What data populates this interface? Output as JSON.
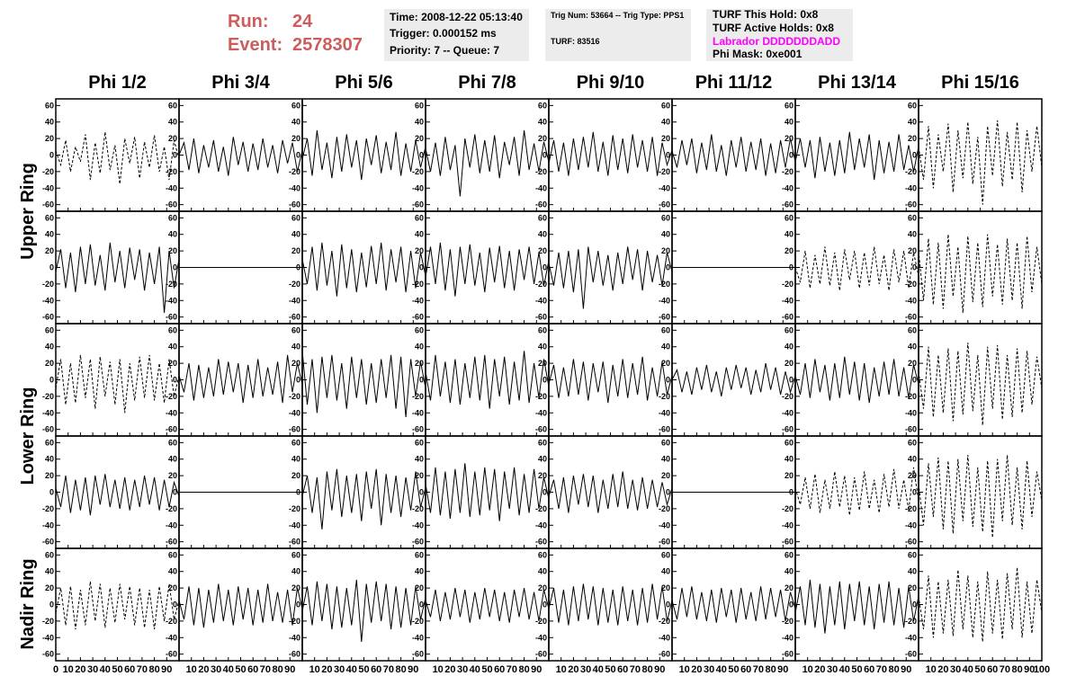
{
  "header": {
    "run_label": "Run:",
    "run": "24",
    "event_label": "Event:",
    "event": "2578307",
    "info_boxes": [
      {
        "lines": [
          "Time: 2008-12-22 05:13:40",
          "Trigger: 0.000152 ms",
          "Priority: 7 -- Queue: 7"
        ]
      },
      {
        "lines": [
          "Trig Num: 53664 -- Trig Type: PPS1",
          "TURF: 83516"
        ]
      },
      {
        "lines": [
          "TURF This Hold: 0x8",
          "TURF Active Holds: 0x8",
          "Labrador DDDDDDDADD",
          "Phi Mask: 0xe001"
        ]
      }
    ]
  },
  "columns": [
    "Phi 1/2",
    "Phi 3/4",
    "Phi 5/6",
    "Phi 7/8",
    "Phi 9/10",
    "Phi 11/12",
    "Phi 13/14",
    "Phi 15/16"
  ],
  "row_labels": [
    "Upper Ring",
    "Lower Ring",
    "Nadir Ring"
  ],
  "chart_data": {
    "type": "line",
    "xlim": [
      0,
      100
    ],
    "ylim": [
      -68,
      68
    ],
    "xticks": [
      0,
      10,
      20,
      30,
      40,
      50,
      60,
      70,
      80,
      90,
      100
    ],
    "yticks": [
      -60,
      -40,
      -20,
      0,
      20,
      40,
      60
    ],
    "x": [
      0,
      4,
      8,
      12,
      16,
      20,
      24,
      28,
      32,
      36,
      40,
      44,
      48,
      52,
      56,
      60,
      64,
      68,
      72,
      76,
      80,
      84,
      88,
      92,
      96,
      100
    ],
    "panels": [
      {
        "dashed": true,
        "values": [
          5,
          -12,
          18,
          -20,
          10,
          -8,
          25,
          -30,
          15,
          -22,
          28,
          -18,
          12,
          -35,
          20,
          -10,
          22,
          -28,
          16,
          -15,
          24,
          -20,
          10,
          -30,
          18,
          -5
        ]
      },
      {
        "dashed": false,
        "values": [
          0,
          15,
          -18,
          20,
          -22,
          12,
          -15,
          18,
          -20,
          10,
          -25,
          22,
          -12,
          16,
          -20,
          14,
          -18,
          20,
          -15,
          12,
          -22,
          18,
          -10,
          15,
          -20,
          5
        ]
      },
      {
        "dashed": false,
        "values": [
          -5,
          20,
          -25,
          30,
          -18,
          15,
          -28,
          22,
          -20,
          25,
          -15,
          18,
          -30,
          20,
          -12,
          24,
          -22,
          16,
          -18,
          28,
          -25,
          14,
          -20,
          18,
          -15,
          10
        ]
      },
      {
        "dashed": false,
        "values": [
          8,
          -20,
          15,
          -25,
          22,
          -18,
          12,
          -50,
          20,
          -15,
          25,
          -22,
          18,
          -20,
          24,
          -28,
          16,
          -12,
          22,
          -25,
          30,
          -18,
          14,
          -20,
          16,
          -8
        ]
      },
      {
        "dashed": false,
        "values": [
          -10,
          18,
          -20,
          15,
          -25,
          20,
          -18,
          22,
          -15,
          28,
          -20,
          16,
          -25,
          24,
          -18,
          20,
          -22,
          25,
          -15,
          18,
          -20,
          22,
          -25,
          15,
          -12,
          6
        ]
      },
      {
        "dashed": false,
        "values": [
          5,
          -15,
          18,
          -12,
          20,
          -22,
          15,
          -18,
          25,
          -20,
          12,
          -25,
          18,
          -15,
          22,
          -20,
          16,
          -18,
          20,
          -25,
          14,
          -22,
          18,
          -15,
          20,
          -8
        ]
      },
      {
        "dashed": false,
        "values": [
          -8,
          20,
          -15,
          18,
          -28,
          22,
          -20,
          15,
          -25,
          18,
          -22,
          28,
          -18,
          20,
          -15,
          25,
          -30,
          18,
          -22,
          16,
          -20,
          25,
          -18,
          12,
          -20,
          10
        ]
      },
      {
        "dashed": true,
        "values": [
          10,
          -30,
          35,
          -40,
          25,
          -20,
          38,
          -45,
          30,
          -28,
          40,
          -35,
          22,
          -60,
          35,
          -25,
          42,
          -38,
          28,
          -30,
          40,
          -45,
          30,
          -20,
          35,
          -15
        ]
      },
      {
        "dashed": false,
        "values": [
          -5,
          22,
          -25,
          18,
          -30,
          25,
          -20,
          28,
          -22,
          15,
          -28,
          30,
          -18,
          20,
          -25,
          24,
          -15,
          22,
          -28,
          18,
          -20,
          25,
          -55,
          20,
          -25,
          10
        ]
      },
      {
        "dashed": false,
        "values": [
          0,
          0,
          0,
          0,
          0,
          0,
          0,
          0,
          0,
          0,
          0,
          0,
          0,
          0,
          0,
          0,
          0,
          0,
          0,
          0,
          0,
          0,
          0,
          0,
          0,
          0
        ]
      },
      {
        "dashed": false,
        "values": [
          10,
          -20,
          25,
          -28,
          30,
          -22,
          20,
          -35,
          28,
          -25,
          22,
          -30,
          18,
          -24,
          26,
          -20,
          30,
          -28,
          22,
          -18,
          25,
          -30,
          20,
          -25,
          18,
          -10
        ]
      },
      {
        "dashed": false,
        "values": [
          -12,
          25,
          -20,
          30,
          -28,
          22,
          -35,
          25,
          -20,
          28,
          -22,
          18,
          -30,
          24,
          -18,
          26,
          -25,
          20,
          -28,
          22,
          -15,
          25,
          -20,
          18,
          -22,
          8
        ]
      },
      {
        "dashed": false,
        "values": [
          5,
          -22,
          18,
          -25,
          20,
          -30,
          22,
          -50,
          25,
          -18,
          20,
          -22,
          15,
          -28,
          18,
          -20,
          25,
          -15,
          22,
          -28,
          20,
          -18,
          15,
          -22,
          18,
          -5
        ]
      },
      {
        "dashed": false,
        "values": [
          0,
          0,
          0,
          0,
          0,
          0,
          0,
          0,
          0,
          0,
          0,
          0,
          0,
          0,
          0,
          0,
          0,
          0,
          0,
          0,
          0,
          0,
          0,
          0,
          0,
          0
        ]
      },
      {
        "dashed": true,
        "values": [
          0,
          -18,
          20,
          -25,
          15,
          -20,
          25,
          -22,
          18,
          -28,
          22,
          -15,
          20,
          -25,
          18,
          -22,
          25,
          -20,
          15,
          -28,
          22,
          -18,
          20,
          -25,
          18,
          -10
        ]
      },
      {
        "dashed": true,
        "values": [
          20,
          -40,
          35,
          -45,
          30,
          -50,
          40,
          -35,
          25,
          -55,
          38,
          -42,
          30,
          -48,
          40,
          -35,
          28,
          -45,
          35,
          -40,
          30,
          -50,
          38,
          -30,
          25,
          -20
        ]
      },
      {
        "dashed": true,
        "values": [
          -10,
          25,
          -30,
          20,
          -28,
          30,
          -22,
          25,
          -35,
          28,
          -20,
          22,
          -30,
          25,
          -40,
          20,
          -25,
          28,
          -22,
          30,
          -25,
          20,
          -28,
          25,
          -20,
          5
        ]
      },
      {
        "dashed": false,
        "values": [
          5,
          -15,
          20,
          -25,
          18,
          -22,
          15,
          -20,
          25,
          -18,
          22,
          -15,
          20,
          -28,
          18,
          -22,
          25,
          -20,
          15,
          -18,
          22,
          -28,
          30,
          -15,
          20,
          -5
        ]
      },
      {
        "dashed": false,
        "values": [
          35,
          -30,
          25,
          -40,
          28,
          -22,
          30,
          -25,
          20,
          -35,
          28,
          -22,
          25,
          -30,
          20,
          -28,
          25,
          -22,
          30,
          -35,
          28,
          -45,
          25,
          -20,
          22,
          -10
        ]
      },
      {
        "dashed": false,
        "values": [
          10,
          -25,
          30,
          -20,
          22,
          -28,
          25,
          -30,
          20,
          -22,
          28,
          -25,
          30,
          -35,
          25,
          -20,
          28,
          -30,
          22,
          -25,
          35,
          -28,
          20,
          -22,
          25,
          -8
        ]
      },
      {
        "dashed": false,
        "values": [
          -5,
          18,
          -22,
          15,
          -20,
          25,
          -18,
          22,
          -25,
          20,
          -15,
          22,
          -28,
          18,
          -20,
          25,
          -22,
          20,
          -18,
          28,
          -25,
          15,
          -20,
          22,
          -18,
          5
        ]
      },
      {
        "dashed": false,
        "values": [
          0,
          12,
          -15,
          10,
          -18,
          15,
          -12,
          18,
          -15,
          10,
          -20,
          15,
          -12,
          18,
          -10,
          15,
          -18,
          12,
          -15,
          20,
          -12,
          15,
          -18,
          10,
          -15,
          5
        ]
      },
      {
        "dashed": false,
        "values": [
          5,
          -18,
          20,
          -22,
          25,
          -15,
          18,
          -25,
          20,
          -22,
          28,
          -18,
          22,
          -25,
          20,
          -28,
          15,
          -20,
          22,
          -18,
          25,
          -20,
          15,
          -22,
          18,
          -5
        ]
      },
      {
        "dashed": true,
        "values": [
          10,
          -35,
          40,
          -45,
          30,
          -40,
          38,
          -50,
          35,
          -42,
          45,
          -38,
          30,
          -55,
          40,
          -35,
          42,
          -48,
          30,
          -45,
          38,
          -40,
          35,
          -30,
          28,
          -10
        ]
      },
      {
        "dashed": false,
        "values": [
          5,
          -18,
          20,
          -25,
          15,
          -22,
          18,
          -28,
          20,
          -15,
          22,
          -18,
          15,
          -20,
          18,
          -22,
          15,
          -18,
          20,
          -15,
          18,
          -22,
          15,
          -18,
          12,
          -5
        ]
      },
      {
        "dashed": false,
        "values": [
          0,
          0,
          0,
          0,
          0,
          0,
          0,
          0,
          0,
          0,
          0,
          0,
          0,
          0,
          0,
          0,
          0,
          0,
          0,
          0,
          0,
          0,
          0,
          0,
          0,
          0
        ]
      },
      {
        "dashed": false,
        "values": [
          -5,
          20,
          -25,
          18,
          -45,
          25,
          -22,
          28,
          -30,
          20,
          -25,
          22,
          -35,
          25,
          -20,
          28,
          -40,
          22,
          -25,
          20,
          -30,
          18,
          -22,
          25,
          -18,
          5
        ]
      },
      {
        "dashed": false,
        "values": [
          10,
          -25,
          30,
          -28,
          25,
          -32,
          28,
          -25,
          35,
          -30,
          25,
          -28,
          30,
          -22,
          28,
          -35,
          25,
          -20,
          30,
          -28,
          22,
          -25,
          28,
          -20,
          18,
          -8
        ]
      },
      {
        "dashed": false,
        "values": [
          -5,
          15,
          -20,
          18,
          -25,
          20,
          -15,
          22,
          -18,
          20,
          -25,
          15,
          -20,
          22,
          -18,
          25,
          -20,
          15,
          -22,
          18,
          -20,
          15,
          -18,
          12,
          -15,
          5
        ]
      },
      {
        "dashed": false,
        "values": [
          0,
          0,
          0,
          0,
          0,
          0,
          0,
          0,
          0,
          0,
          0,
          0,
          0,
          0,
          0,
          0,
          0,
          0,
          0,
          0,
          0,
          0,
          0,
          0,
          0,
          0
        ]
      },
      {
        "dashed": true,
        "values": [
          5,
          -15,
          18,
          -20,
          22,
          -25,
          15,
          -20,
          25,
          -18,
          20,
          -28,
          18,
          -22,
          25,
          -20,
          15,
          -25,
          22,
          -18,
          28,
          -20,
          15,
          -22,
          30,
          -10
        ]
      },
      {
        "dashed": true,
        "values": [
          10,
          -40,
          35,
          -30,
          42,
          -45,
          38,
          -50,
          40,
          -35,
          45,
          -42,
          30,
          -48,
          38,
          -55,
          40,
          -35,
          45,
          -40,
          30,
          -45,
          38,
          -30,
          25,
          -10
        ]
      },
      {
        "dashed": true,
        "values": [
          -10,
          20,
          -25,
          22,
          -30,
          18,
          -25,
          28,
          -20,
          25,
          -28,
          20,
          -22,
          25,
          -18,
          22,
          -25,
          20,
          -28,
          18,
          -30,
          22,
          -20,
          25,
          -18,
          5
        ]
      },
      {
        "dashed": false,
        "values": [
          5,
          -18,
          22,
          -25,
          20,
          -28,
          18,
          -22,
          25,
          -20,
          18,
          -25,
          22,
          -18,
          20,
          -25,
          18,
          -22,
          25,
          -20,
          15,
          -22,
          18,
          -25,
          20,
          -5
        ]
      },
      {
        "dashed": false,
        "values": [
          -8,
          22,
          -25,
          28,
          -20,
          25,
          -30,
          22,
          -28,
          20,
          -25,
          30,
          -45,
          25,
          -22,
          28,
          -20,
          25,
          -30,
          22,
          -28,
          20,
          -25,
          22,
          -18,
          8
        ]
      },
      {
        "dashed": false,
        "values": [
          5,
          -15,
          18,
          -20,
          15,
          -18,
          20,
          -15,
          18,
          -22,
          15,
          -18,
          20,
          -15,
          18,
          -20,
          15,
          -22,
          18,
          -15,
          20,
          -18,
          15,
          -20,
          18,
          -5
        ]
      },
      {
        "dashed": false,
        "values": [
          -5,
          20,
          -22,
          18,
          -25,
          22,
          -20,
          25,
          -18,
          22,
          -25,
          20,
          -22,
          18,
          -25,
          22,
          -20,
          18,
          -25,
          20,
          -22,
          25,
          -18,
          22,
          -20,
          5
        ]
      },
      {
        "dashed": false,
        "values": [
          5,
          -18,
          20,
          -15,
          22,
          -18,
          15,
          -20,
          18,
          -22,
          20,
          -15,
          18,
          -22,
          20,
          -18,
          15,
          -20,
          22,
          -18,
          20,
          -15,
          18,
          -20,
          15,
          -5
        ]
      },
      {
        "dashed": false,
        "values": [
          -10,
          22,
          -25,
          30,
          -28,
          25,
          -35,
          22,
          -25,
          28,
          -30,
          25,
          -20,
          28,
          -25,
          22,
          -30,
          25,
          -22,
          28,
          -25,
          20,
          -28,
          22,
          -20,
          10
        ]
      },
      {
        "dashed": true,
        "values": [
          10,
          -30,
          35,
          -40,
          28,
          -35,
          30,
          -38,
          42,
          -30,
          35,
          -40,
          28,
          -45,
          40,
          -35,
          30,
          -42,
          38,
          -30,
          45,
          -40,
          28,
          -35,
          30,
          -10
        ]
      }
    ]
  }
}
